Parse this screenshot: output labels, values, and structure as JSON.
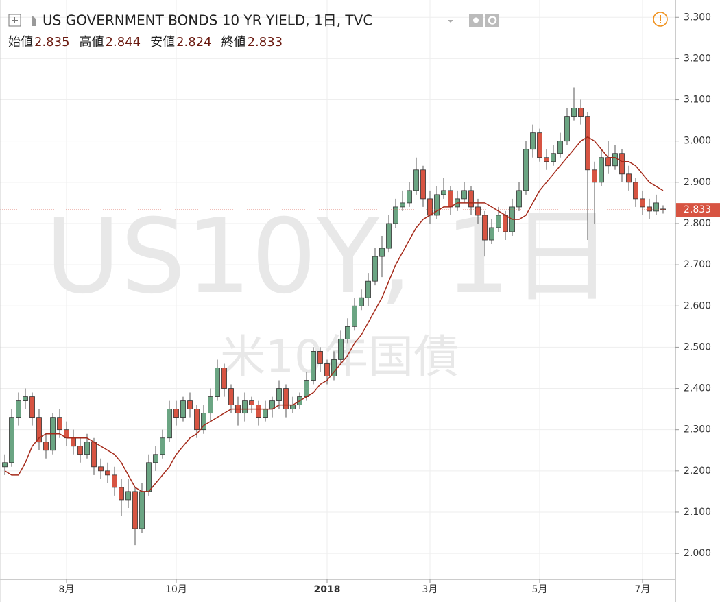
{
  "chart_data": {
    "type": "candlestick",
    "title": "US GOVERNMENT BONDS 10 YR YIELD, 1日, TVC",
    "ohlc_legend": [
      {
        "label": "始値",
        "value": 2.835
      },
      {
        "label": "高値",
        "value": 2.844
      },
      {
        "label": "安値",
        "value": 2.824
      },
      {
        "label": "終値",
        "value": 2.833
      }
    ],
    "watermark": "US10Y, 1日",
    "watermark_subtitle": "米10年国債",
    "categories": [
      null,
      null,
      null,
      null,
      null,
      null,
      null,
      null,
      null,
      "8月",
      null,
      null,
      null,
      null,
      null,
      null,
      null,
      null,
      null,
      null,
      null,
      null,
      null,
      null,
      null,
      "10月",
      null,
      null,
      null,
      null,
      null,
      null,
      null,
      null,
      null,
      null,
      null,
      null,
      null,
      null,
      null,
      null,
      null,
      null,
      null,
      null,
      null,
      "2018",
      null,
      null,
      null,
      null,
      null,
      null,
      null,
      null,
      null,
      null,
      null,
      null,
      null,
      null,
      "3月",
      null,
      null,
      null,
      null,
      null,
      null,
      null,
      null,
      null,
      null,
      null,
      null,
      null,
      null,
      null,
      "5月",
      null,
      null,
      null,
      null,
      null,
      null,
      null,
      null,
      null,
      null,
      null,
      null,
      null,
      null,
      "7月",
      null,
      null,
      null
    ],
    "open": [
      2.21,
      2.22,
      2.33,
      2.37,
      2.38,
      2.33,
      2.27,
      2.25,
      2.33,
      2.3,
      2.28,
      2.26,
      2.24,
      2.27,
      2.21,
      2.2,
      2.19,
      2.16,
      2.13,
      2.15,
      2.06,
      2.15,
      2.22,
      2.24,
      2.28,
      2.35,
      2.33,
      2.37,
      2.35,
      2.3,
      2.34,
      2.38,
      2.45,
      2.4,
      2.36,
      2.34,
      2.37,
      2.36,
      2.33,
      2.35,
      2.37,
      2.4,
      2.35,
      2.36,
      2.38,
      2.42,
      2.49,
      2.46,
      2.43,
      2.47,
      2.52,
      2.55,
      2.6,
      2.62,
      2.66,
      2.72,
      2.74,
      2.8,
      2.84,
      2.85,
      2.88,
      2.93,
      2.86,
      2.82,
      2.87,
      2.88,
      2.84,
      2.86,
      2.88,
      2.84,
      2.82,
      2.76,
      2.79,
      2.82,
      2.78,
      2.84,
      2.88,
      2.98,
      3.02,
      2.96,
      2.95,
      2.97,
      3.0,
      3.06,
      3.08,
      3.06,
      2.93,
      2.9,
      2.96,
      2.94,
      2.97,
      2.92,
      2.9,
      2.86,
      2.84,
      2.83,
      2.835
    ],
    "high": [
      2.24,
      2.35,
      2.39,
      2.4,
      2.39,
      2.35,
      2.29,
      2.34,
      2.35,
      2.32,
      2.3,
      2.28,
      2.29,
      2.28,
      2.23,
      2.22,
      2.21,
      2.18,
      2.18,
      2.16,
      2.17,
      2.24,
      2.26,
      2.3,
      2.37,
      2.37,
      2.38,
      2.39,
      2.36,
      2.36,
      2.4,
      2.47,
      2.46,
      2.41,
      2.38,
      2.39,
      2.38,
      2.37,
      2.37,
      2.38,
      2.42,
      2.41,
      2.38,
      2.39,
      2.44,
      2.5,
      2.5,
      2.47,
      2.49,
      2.54,
      2.57,
      2.62,
      2.64,
      2.68,
      2.74,
      2.77,
      2.82,
      2.86,
      2.88,
      2.9,
      2.96,
      2.94,
      2.88,
      2.89,
      2.91,
      2.89,
      2.88,
      2.9,
      2.89,
      2.86,
      2.83,
      2.81,
      2.84,
      2.83,
      2.86,
      2.9,
      3.0,
      3.04,
      3.03,
      2.98,
      2.99,
      3.02,
      3.08,
      3.13,
      3.1,
      3.07,
      2.95,
      2.98,
      3.0,
      2.99,
      2.98,
      2.94,
      2.91,
      2.88,
      2.86,
      2.87,
      2.844
    ],
    "low": [
      2.19,
      2.21,
      2.31,
      2.35,
      2.31,
      2.25,
      2.23,
      2.24,
      2.28,
      2.26,
      2.24,
      2.22,
      2.23,
      2.19,
      2.18,
      2.17,
      2.14,
      2.09,
      2.11,
      2.02,
      2.05,
      2.14,
      2.2,
      2.23,
      2.27,
      2.31,
      2.32,
      2.33,
      2.28,
      2.29,
      2.32,
      2.37,
      2.38,
      2.34,
      2.31,
      2.32,
      2.34,
      2.31,
      2.32,
      2.33,
      2.35,
      2.33,
      2.34,
      2.35,
      2.37,
      2.41,
      2.44,
      2.41,
      2.42,
      2.46,
      2.51,
      2.54,
      2.59,
      2.6,
      2.65,
      2.67,
      2.73,
      2.79,
      2.83,
      2.84,
      2.87,
      2.84,
      2.8,
      2.81,
      2.86,
      2.82,
      2.83,
      2.85,
      2.82,
      2.8,
      2.72,
      2.75,
      2.78,
      2.76,
      2.77,
      2.83,
      2.87,
      2.96,
      2.95,
      2.93,
      2.94,
      2.96,
      2.99,
      3.05,
      3.04,
      2.76,
      2.8,
      2.89,
      2.92,
      2.93,
      2.9,
      2.88,
      2.84,
      2.82,
      2.81,
      2.82,
      2.824
    ],
    "close": [
      2.22,
      2.33,
      2.37,
      2.38,
      2.33,
      2.27,
      2.25,
      2.33,
      2.3,
      2.28,
      2.26,
      2.24,
      2.27,
      2.21,
      2.2,
      2.19,
      2.16,
      2.13,
      2.15,
      2.06,
      2.15,
      2.22,
      2.24,
      2.28,
      2.35,
      2.33,
      2.37,
      2.35,
      2.3,
      2.34,
      2.38,
      2.45,
      2.4,
      2.36,
      2.34,
      2.37,
      2.36,
      2.33,
      2.35,
      2.37,
      2.4,
      2.35,
      2.36,
      2.38,
      2.42,
      2.49,
      2.46,
      2.43,
      2.47,
      2.52,
      2.55,
      2.6,
      2.62,
      2.66,
      2.72,
      2.74,
      2.8,
      2.84,
      2.85,
      2.88,
      2.93,
      2.86,
      2.82,
      2.87,
      2.88,
      2.84,
      2.86,
      2.88,
      2.84,
      2.82,
      2.76,
      2.79,
      2.82,
      2.78,
      2.84,
      2.88,
      2.98,
      3.02,
      2.96,
      2.95,
      2.97,
      3.0,
      3.06,
      3.08,
      3.06,
      2.93,
      2.9,
      2.96,
      2.94,
      2.97,
      2.92,
      2.9,
      2.86,
      2.84,
      2.83,
      2.85,
      2.833
    ],
    "up_color": "#6ba583",
    "down_color": "#d75442",
    "ma": {
      "color": "#a52a1a",
      "values": [
        2.2,
        2.19,
        2.19,
        2.22,
        2.26,
        2.28,
        2.29,
        2.29,
        2.29,
        2.28,
        2.28,
        2.28,
        2.28,
        2.27,
        2.26,
        2.25,
        2.24,
        2.22,
        2.19,
        2.16,
        2.15,
        2.15,
        2.17,
        2.19,
        2.21,
        2.24,
        2.26,
        2.28,
        2.29,
        2.31,
        2.32,
        2.33,
        2.34,
        2.35,
        2.35,
        2.35,
        2.35,
        2.35,
        2.35,
        2.35,
        2.36,
        2.36,
        2.36,
        2.37,
        2.38,
        2.39,
        2.41,
        2.42,
        2.44,
        2.46,
        2.48,
        2.51,
        2.53,
        2.56,
        2.59,
        2.62,
        2.66,
        2.7,
        2.73,
        2.76,
        2.79,
        2.81,
        2.82,
        2.83,
        2.84,
        2.84,
        2.85,
        2.85,
        2.85,
        2.85,
        2.85,
        2.84,
        2.83,
        2.82,
        2.81,
        2.81,
        2.82,
        2.85,
        2.88,
        2.9,
        2.92,
        2.94,
        2.96,
        2.98,
        3.0,
        3.01,
        3.0,
        2.98,
        2.96,
        2.96,
        2.95,
        2.95,
        2.94,
        2.92,
        2.9,
        2.89,
        2.88
      ]
    },
    "last_price": 2.833,
    "ylim": [
      1.937,
      3.342
    ],
    "yticks": [
      {
        "value": 2.0,
        "label": "2.000"
      },
      {
        "value": 2.1,
        "label": "2.100"
      },
      {
        "value": 2.2,
        "label": "2.200"
      },
      {
        "value": 2.3,
        "label": "2.300"
      },
      {
        "value": 2.4,
        "label": "2.400"
      },
      {
        "value": 2.5,
        "label": "2.500"
      },
      {
        "value": 2.6,
        "label": "2.600"
      },
      {
        "value": 2.7,
        "label": "2.700"
      },
      {
        "value": 2.8,
        "label": "2.800"
      },
      {
        "value": 2.9,
        "label": "2.900"
      },
      {
        "value": 3.0,
        "label": "3.000"
      },
      {
        "value": 3.1,
        "label": "3.100"
      },
      {
        "value": 3.2,
        "label": "3.200"
      },
      {
        "value": 3.3,
        "label": "3.300"
      }
    ],
    "grid": true
  }
}
